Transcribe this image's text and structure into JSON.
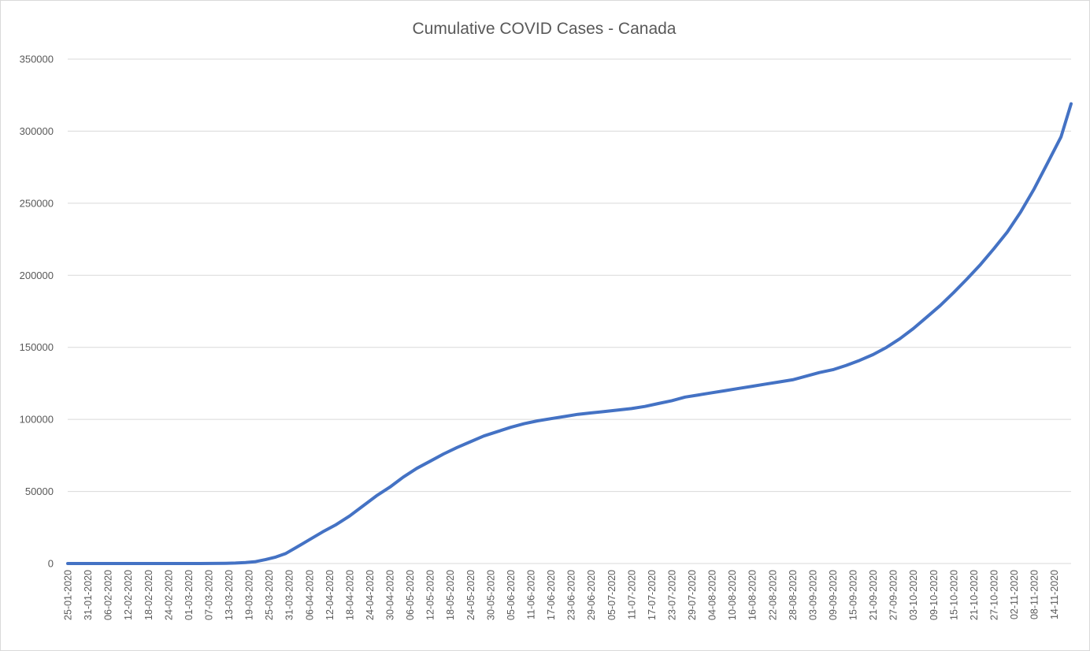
{
  "chart_data": {
    "type": "line",
    "title": "Cumulative COVID Cases - Canada",
    "xlabel": "",
    "ylabel": "",
    "ylim": [
      0,
      350000
    ],
    "y_ticks": [
      "0",
      "50000",
      "100000",
      "150000",
      "200000",
      "250000",
      "300000",
      "350000"
    ],
    "x_tick_labels": [
      "25-01-2020",
      "31-01-2020",
      "06-02-2020",
      "12-02-2020",
      "18-02-2020",
      "24-02-2020",
      "01-03-2020",
      "07-03-2020",
      "13-03-2020",
      "19-03-2020",
      "25-03-2020",
      "31-03-2020",
      "06-04-2020",
      "12-04-2020",
      "18-04-2020",
      "24-04-2020",
      "30-04-2020",
      "06-05-2020",
      "12-05-2020",
      "18-05-2020",
      "24-05-2020",
      "30-05-2020",
      "05-06-2020",
      "11-06-2020",
      "17-06-2020",
      "23-06-2020",
      "29-06-2020",
      "05-07-2020",
      "11-07-2020",
      "17-07-2020",
      "23-07-2020",
      "29-07-2020",
      "04-08-2020",
      "10-08-2020",
      "16-08-2020",
      "22-08-2020",
      "28-08-2020",
      "03-09-2020",
      "09-09-2020",
      "15-09-2020",
      "21-09-2020",
      "27-09-2020",
      "03-10-2020",
      "09-10-2020",
      "15-10-2020",
      "21-10-2020",
      "27-10-2020",
      "02-11-2020",
      "08-11-2020",
      "14-11-2020"
    ],
    "x_first": "25-01-2020",
    "x_last": "19-11-2020",
    "grid": true,
    "legend": "none",
    "series": [
      {
        "color": "#4472C4",
        "points": [
          [
            "25-01-2020",
            0
          ],
          [
            "29-02-2020",
            20
          ],
          [
            "08-03-2020",
            64
          ],
          [
            "12-03-2020",
            158
          ],
          [
            "15-03-2020",
            340
          ],
          [
            "18-03-2020",
            700
          ],
          [
            "21-03-2020",
            1300
          ],
          [
            "24-03-2020",
            2800
          ],
          [
            "27-03-2020",
            4500
          ],
          [
            "30-03-2020",
            7000
          ],
          [
            "02-04-2020",
            11000
          ],
          [
            "06-04-2020",
            16500
          ],
          [
            "10-04-2020",
            22000
          ],
          [
            "14-04-2020",
            27000
          ],
          [
            "18-04-2020",
            33000
          ],
          [
            "22-04-2020",
            40000
          ],
          [
            "26-04-2020",
            47000
          ],
          [
            "30-04-2020",
            53000
          ],
          [
            "04-05-2020",
            60000
          ],
          [
            "08-05-2020",
            66000
          ],
          [
            "12-05-2020",
            71000
          ],
          [
            "16-05-2020",
            76000
          ],
          [
            "20-05-2020",
            80500
          ],
          [
            "24-05-2020",
            84500
          ],
          [
            "28-05-2020",
            88500
          ],
          [
            "01-06-2020",
            91500
          ],
          [
            "05-06-2020",
            94500
          ],
          [
            "09-06-2020",
            97000
          ],
          [
            "13-06-2020",
            99000
          ],
          [
            "17-06-2020",
            100500
          ],
          [
            "21-06-2020",
            102000
          ],
          [
            "25-06-2020",
            103500
          ],
          [
            "29-06-2020",
            104500
          ],
          [
            "03-07-2020",
            105500
          ],
          [
            "07-07-2020",
            106500
          ],
          [
            "11-07-2020",
            107500
          ],
          [
            "15-07-2020",
            109000
          ],
          [
            "19-07-2020",
            111000
          ],
          [
            "23-07-2020",
            113000
          ],
          [
            "27-07-2020",
            115500
          ],
          [
            "31-07-2020",
            117000
          ],
          [
            "04-08-2020",
            118500
          ],
          [
            "08-08-2020",
            120000
          ],
          [
            "12-08-2020",
            121500
          ],
          [
            "16-08-2020",
            123000
          ],
          [
            "20-08-2020",
            124500
          ],
          [
            "24-08-2020",
            126000
          ],
          [
            "28-08-2020",
            127500
          ],
          [
            "01-09-2020",
            130000
          ],
          [
            "05-09-2020",
            132500
          ],
          [
            "09-09-2020",
            134500
          ],
          [
            "13-09-2020",
            137500
          ],
          [
            "17-09-2020",
            141000
          ],
          [
            "21-09-2020",
            145000
          ],
          [
            "25-09-2020",
            150000
          ],
          [
            "29-09-2020",
            156000
          ],
          [
            "03-10-2020",
            163000
          ],
          [
            "07-10-2020",
            171000
          ],
          [
            "11-10-2020",
            179000
          ],
          [
            "15-10-2020",
            188000
          ],
          [
            "19-10-2020",
            197500
          ],
          [
            "23-10-2020",
            207500
          ],
          [
            "27-10-2020",
            218500
          ],
          [
            "31-10-2020",
            230000
          ],
          [
            "04-11-2020",
            244000
          ],
          [
            "08-11-2020",
            260000
          ],
          [
            "12-11-2020",
            278000
          ],
          [
            "16-11-2020",
            296000
          ],
          [
            "19-11-2020",
            319000
          ]
        ]
      }
    ]
  }
}
